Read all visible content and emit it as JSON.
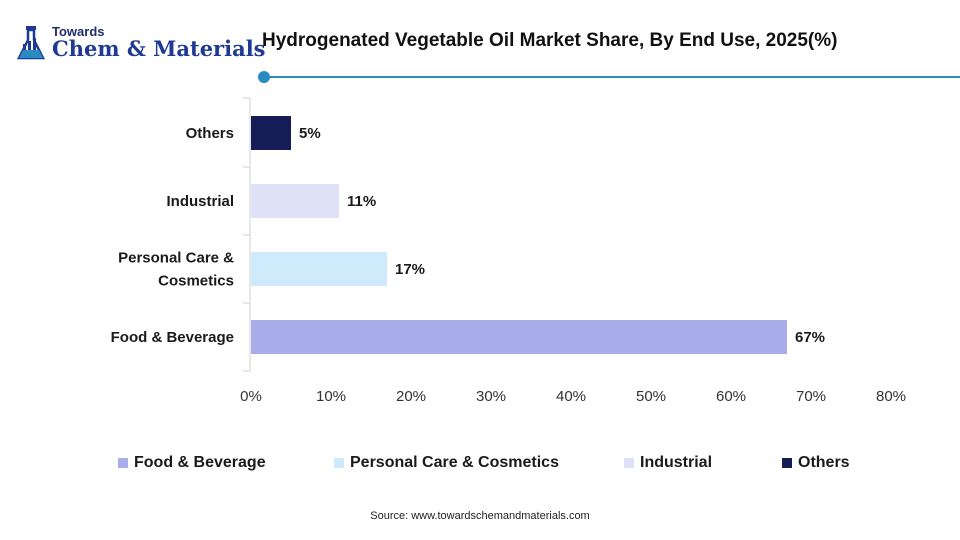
{
  "logo": {
    "line1": "Towards",
    "line2": "Chem & Materials"
  },
  "title": "Hydrogenated Vegetable Oil Market Share, By End Use, 2025(%)",
  "source": "Source: www.towardschemandmaterials.com",
  "colors": {
    "food_beverage": "#a9aeea",
    "personal_care": "#cfeafb",
    "industrial": "#dfe1f6",
    "others": "#161c56",
    "accent": "#2a8bc2"
  },
  "chart_data": {
    "type": "bar",
    "orientation": "horizontal",
    "categories": [
      "Others",
      "Industrial",
      "Personal Care & Cosmetics",
      "Food & Beverage"
    ],
    "category_lines": [
      [
        "Others"
      ],
      [
        "Industrial"
      ],
      [
        "Personal Care &",
        "Cosmetics"
      ],
      [
        "Food & Beverage"
      ]
    ],
    "values": [
      5,
      11,
      17,
      67
    ],
    "data_labels": [
      "5%",
      "11%",
      "17%",
      "67%"
    ],
    "bar_colors": [
      "#161c56",
      "#dfe1f6",
      "#cfeafb",
      "#a9aeea"
    ],
    "xlim": [
      0,
      80
    ],
    "x_ticks": [
      0,
      10,
      20,
      30,
      40,
      50,
      60,
      70,
      80
    ],
    "x_tick_labels": [
      "0%",
      "10%",
      "20%",
      "30%",
      "40%",
      "50%",
      "60%",
      "70%",
      "80%"
    ],
    "grid": false,
    "legend_position": "bottom",
    "legend": [
      {
        "label": "Food & Beverage",
        "color": "#a9aeea"
      },
      {
        "label": "Personal Care & Cosmetics",
        "color": "#cfeafb"
      },
      {
        "label": "Industrial",
        "color": "#dfe1f6"
      },
      {
        "label": "Others",
        "color": "#161c56"
      }
    ]
  }
}
